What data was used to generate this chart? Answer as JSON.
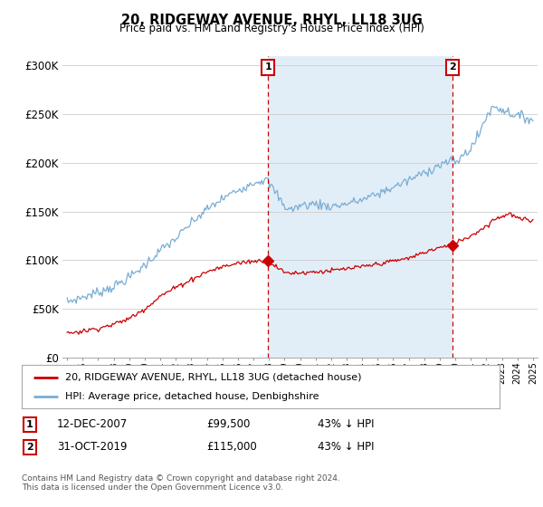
{
  "title": "20, RIDGEWAY AVENUE, RHYL, LL18 3UG",
  "subtitle": "Price paid vs. HM Land Registry's House Price Index (HPI)",
  "ylabel_ticks": [
    "£0",
    "£50K",
    "£100K",
    "£150K",
    "£200K",
    "£250K",
    "£300K"
  ],
  "ytick_vals": [
    0,
    50000,
    100000,
    150000,
    200000,
    250000,
    300000
  ],
  "ylim": [
    0,
    310000
  ],
  "xlim_start": 1994.7,
  "xlim_end": 2025.3,
  "hpi_color": "#7aadd4",
  "hpi_fill_color": "#d6e8f5",
  "price_color": "#cc0000",
  "marker1_date": 2007.95,
  "marker1_price": 99500,
  "marker2_date": 2019.83,
  "marker2_price": 115000,
  "marker1_label": "12-DEC-2007",
  "marker1_amount": "£99,500",
  "marker1_pct": "43% ↓ HPI",
  "marker2_label": "31-OCT-2019",
  "marker2_amount": "£115,000",
  "marker2_pct": "43% ↓ HPI",
  "legend_price_label": "20, RIDGEWAY AVENUE, RHYL, LL18 3UG (detached house)",
  "legend_hpi_label": "HPI: Average price, detached house, Denbighshire",
  "footer": "Contains HM Land Registry data © Crown copyright and database right 2024.\nThis data is licensed under the Open Government Licence v3.0.",
  "background_color": "#ffffff",
  "grid_color": "#cccccc",
  "vline_color": "#cc0000"
}
